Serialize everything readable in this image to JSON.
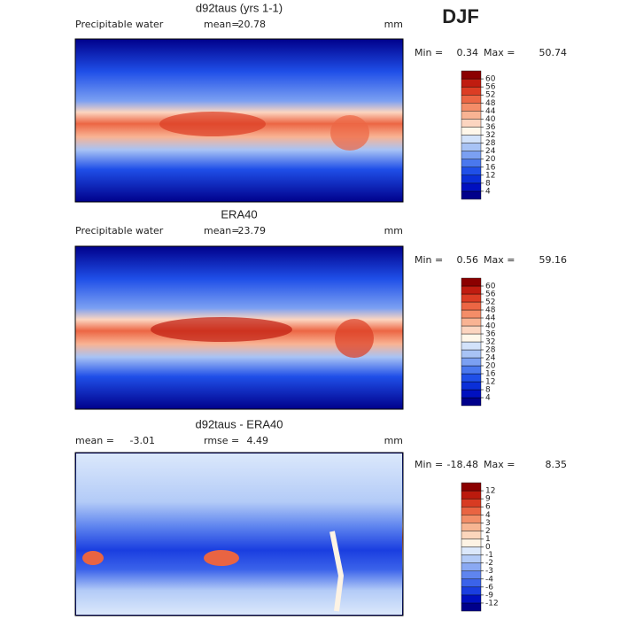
{
  "season": "DJF",
  "min_label": "Min =",
  "max_label": "Max =",
  "panels": [
    {
      "title": "d92taus (yrs 1-1)",
      "variable": "Precipitable water",
      "mean_label": "mean=",
      "mean": 20.78,
      "units": "mm",
      "min": 0.34,
      "max": 50.74,
      "colorbar": {
        "levels": [
          4,
          8,
          12,
          16,
          20,
          24,
          28,
          32,
          36,
          40,
          44,
          48,
          52,
          56,
          60
        ],
        "colors": [
          "#00008b",
          "#0010c0",
          "#0a2fd8",
          "#1f4fe8",
          "#4a78ee",
          "#7ba0f2",
          "#a8c3f5",
          "#d2e2fa",
          "#fff7ea",
          "#fcd5c0",
          "#f9b393",
          "#f48d68",
          "#ec6644",
          "#dc3d24",
          "#c01c10",
          "#8b0000"
        ]
      }
    },
    {
      "title": "ERA40",
      "variable": "Precipitable water",
      "mean_label": "mean=",
      "mean": 23.79,
      "units": "mm",
      "min": 0.56,
      "max": 59.16,
      "colorbar": {
        "levels": [
          4,
          8,
          12,
          16,
          20,
          24,
          28,
          32,
          36,
          40,
          44,
          48,
          52,
          56,
          60
        ],
        "colors": [
          "#00008b",
          "#0010c0",
          "#0a2fd8",
          "#1f4fe8",
          "#4a78ee",
          "#7ba0f2",
          "#a8c3f5",
          "#d2e2fa",
          "#fff7ea",
          "#fcd5c0",
          "#f9b393",
          "#f48d68",
          "#ec6644",
          "#dc3d24",
          "#c01c10",
          "#8b0000"
        ]
      }
    },
    {
      "title": "d92taus - ERA40",
      "mean_label": "mean =",
      "mean": -3.01,
      "rmse_label": "rmse =",
      "rmse": 4.49,
      "units": "mm",
      "min": -18.48,
      "max": 8.35,
      "colorbar": {
        "levels": [
          -12,
          -9,
          -6,
          -4,
          -3,
          -2,
          -1,
          0,
          1,
          2,
          3,
          4,
          6,
          9,
          12
        ],
        "colors": [
          "#00008b",
          "#0010c0",
          "#1a3ee0",
          "#3b63ea",
          "#5f85ef",
          "#8aa9f3",
          "#b3cbf7",
          "#dbe8fb",
          "#fdf3e4",
          "#fbd6bc",
          "#f7b592",
          "#f28e68",
          "#e96442",
          "#d83b22",
          "#bb1a0d",
          "#8b0000"
        ]
      }
    }
  ]
}
